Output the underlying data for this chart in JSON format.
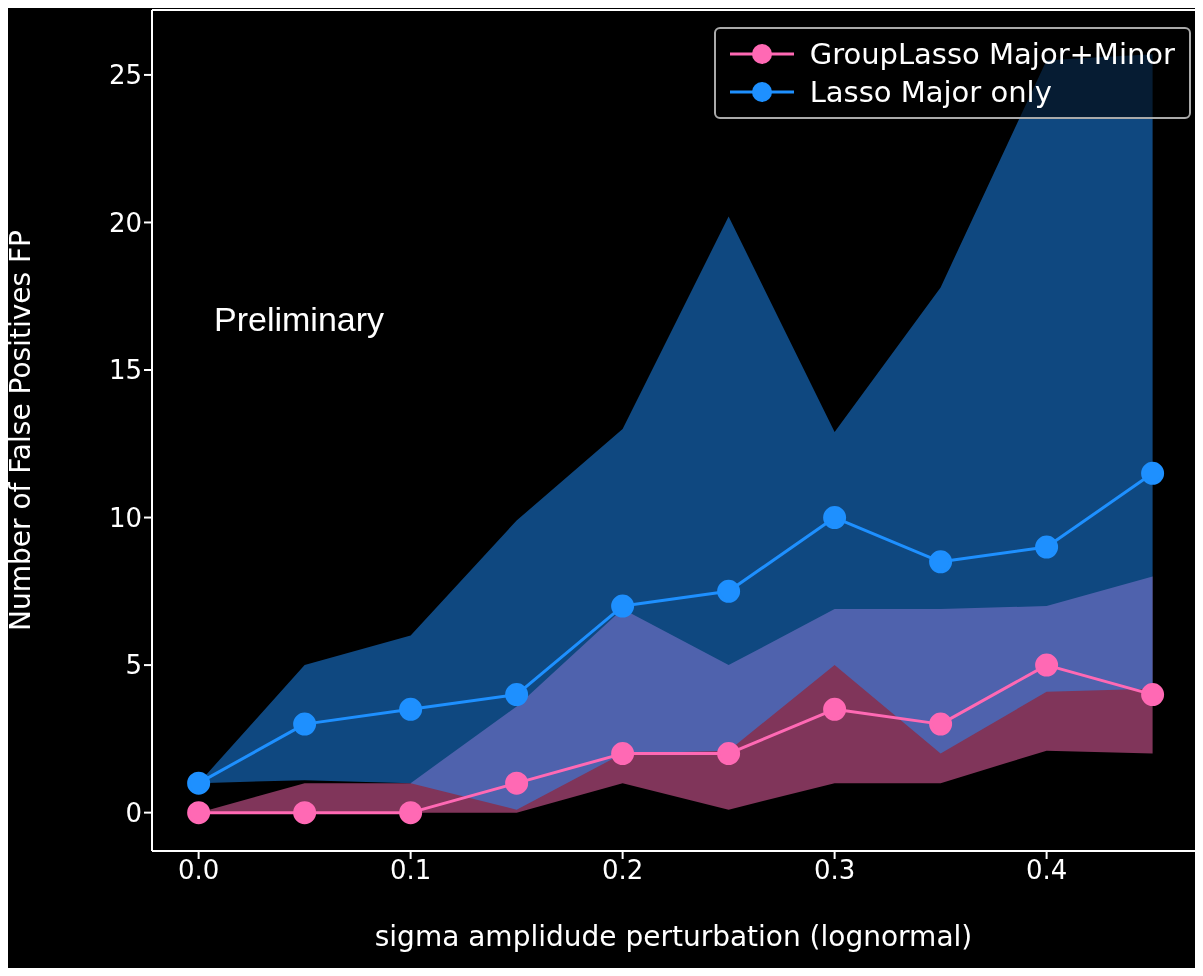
{
  "chart_data": {
    "type": "line",
    "xlabel": "sigma amplidude perturbation (lognormal)",
    "ylabel": "Number of False Positives FP",
    "x": [
      0,
      0.05,
      0.1,
      0.15,
      0.2,
      0.25,
      0.3,
      0.35,
      0.4,
      0.45
    ],
    "series": [
      {
        "name": "GroupLasso Major+Minor",
        "color": "#ff69b4",
        "values": [
          0,
          0,
          0,
          1,
          2,
          2,
          3.5,
          3,
          5,
          4
        ],
        "lower": [
          0,
          0,
          0,
          0,
          1,
          0.1,
          1,
          1,
          2.1,
          2
        ],
        "upper": [
          0,
          1,
          1,
          3.6,
          6.9,
          5,
          6.9,
          6.9,
          7,
          8
        ]
      },
      {
        "name": "Lasso Major only",
        "color": "#1e90ff",
        "values": [
          1,
          3,
          3.5,
          4,
          7,
          7.5,
          10,
          8.5,
          9,
          11.5
        ],
        "lower": [
          1,
          1.1,
          1,
          0.1,
          2,
          2.1,
          5,
          2,
          4.1,
          4.2
        ],
        "upper": [
          1,
          5,
          6,
          9.9,
          13,
          20.2,
          12.9,
          17.8,
          25.5,
          25.7
        ]
      }
    ],
    "xlim": [
      -0.022,
      0.47
    ],
    "ylim": [
      -1.3,
      27.2
    ],
    "xticks": [
      {
        "value": 0,
        "label": "0.0"
      },
      0.1,
      0.2,
      0.3,
      0.4
    ],
    "yticks": [
      0,
      5,
      10,
      15,
      20,
      25
    ],
    "marker": "circle",
    "legend": "top right",
    "grid": false,
    "annotations": [
      "Preliminary"
    ]
  }
}
